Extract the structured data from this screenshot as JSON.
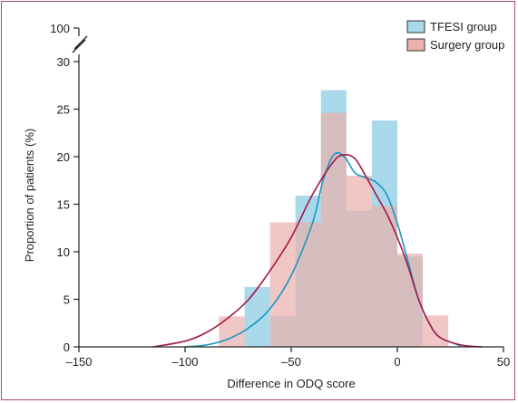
{
  "chart_data": {
    "type": "bar",
    "title": "",
    "xlabel": "Difference in ODQ score",
    "ylabel": "Proportion of patients (%)",
    "xlim": [
      -150,
      50
    ],
    "ylim": [
      0,
      30
    ],
    "y_axis_break": true,
    "y_break_top_label": "100",
    "x_ticks": [
      "-150",
      "-100",
      "-50",
      "0",
      "50"
    ],
    "y_ticks": [
      "0",
      "5",
      "10",
      "15",
      "20",
      "25",
      "30"
    ],
    "legend_position": "top-right",
    "bin_edges": [
      -84,
      -72,
      -60,
      -48,
      -36,
      -24,
      -12,
      0,
      12,
      24
    ],
    "series": [
      {
        "name": "TFESI group",
        "color": "#a9d9ea",
        "curve_color": "#1a97c0",
        "values": [
          0,
          6.3,
          3.2,
          15.9,
          27.0,
          14.3,
          23.8,
          9.5,
          0
        ],
        "density_curve": [
          [
            -100,
            0
          ],
          [
            -90,
            0.2
          ],
          [
            -80,
            0.8
          ],
          [
            -70,
            2.0
          ],
          [
            -60,
            4.0
          ],
          [
            -50,
            7.5
          ],
          [
            -40,
            13.0
          ],
          [
            -35,
            17.5
          ],
          [
            -30,
            20.2
          ],
          [
            -25,
            20.0
          ],
          [
            -20,
            18.3
          ],
          [
            -15,
            17.8
          ],
          [
            -10,
            17.3
          ],
          [
            -5,
            16.0
          ],
          [
            0,
            13.0
          ],
          [
            5,
            9.0
          ],
          [
            10,
            5.0
          ],
          [
            15,
            2.5
          ],
          [
            20,
            1.0
          ],
          [
            30,
            0.1
          ]
        ]
      },
      {
        "name": "Surgery group",
        "color": "#eab2ad",
        "curve_color": "#a3184a",
        "values": [
          3.2,
          0,
          13.1,
          13.1,
          24.6,
          18.0,
          14.8,
          9.8,
          3.3
        ],
        "density_curve": [
          [
            -115,
            0
          ],
          [
            -100,
            0.6
          ],
          [
            -90,
            1.5
          ],
          [
            -80,
            3.0
          ],
          [
            -70,
            5.0
          ],
          [
            -60,
            8.0
          ],
          [
            -50,
            11.5
          ],
          [
            -40,
            16.0
          ],
          [
            -30,
            19.5
          ],
          [
            -25,
            20.2
          ],
          [
            -20,
            19.8
          ],
          [
            -15,
            18.0
          ],
          [
            -10,
            16.0
          ],
          [
            -5,
            14.0
          ],
          [
            0,
            11.5
          ],
          [
            5,
            8.5
          ],
          [
            10,
            5.0
          ],
          [
            15,
            2.5
          ],
          [
            20,
            1.0
          ],
          [
            30,
            0.2
          ],
          [
            40,
            0
          ]
        ]
      }
    ]
  }
}
